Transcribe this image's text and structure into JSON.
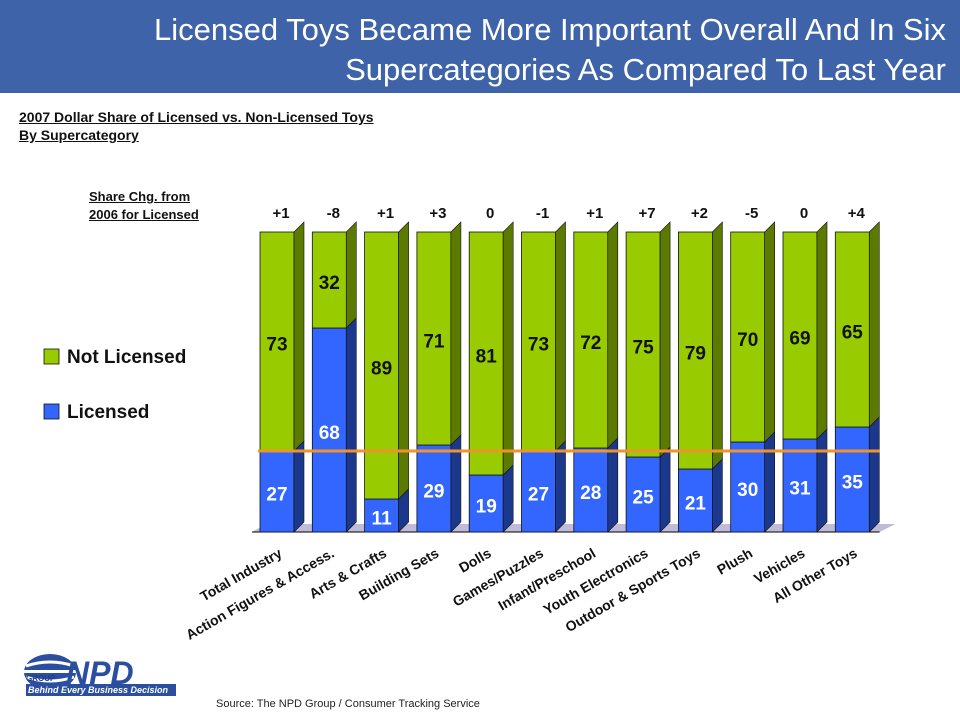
{
  "title": "Licensed Toys Became More Important Overall And In Six\nSupercategories As Compared To Last Year",
  "subtitle_line1": "2007 Dollar Share of Licensed vs. Non-Licensed Toys",
  "subtitle_line2": "By Supercategory",
  "share_change_label_line1": "Share Chg. from",
  "share_change_label_line2": "2006 for Licensed",
  "source": "Source:  The NPD Group / Consumer Tracking Service",
  "logo": {
    "name": "NPD",
    "group": "GROUP",
    "tagline": "Behind Every Business Decision"
  },
  "colors": {
    "title_bar": "#3e63a9",
    "not_licensed": "#99cc00",
    "licensed": "#3366ff",
    "reference_line": "#f0932b"
  },
  "chart_data": {
    "type": "bar",
    "stacked": true,
    "percent_stacked": true,
    "categories": [
      "Total Industry",
      "Action Figures & Access.",
      "Arts & Crafts",
      "Building Sets",
      "Dolls",
      "Games/Puzzles",
      "Infant/Preschool",
      "Youth Electronics",
      "Outdoor & Sports Toys",
      "Plush",
      "Vehicles",
      "All Other Toys"
    ],
    "series": [
      {
        "name": "Licensed",
        "values": [
          27,
          68,
          11,
          29,
          19,
          27,
          28,
          25,
          21,
          30,
          31,
          35
        ]
      },
      {
        "name": "Not Licensed",
        "values": [
          73,
          32,
          89,
          71,
          81,
          73,
          72,
          75,
          79,
          70,
          69,
          65
        ]
      }
    ],
    "share_change_licensed": [
      "+1",
      "-8",
      "+1",
      "+3",
      "0",
      "-1",
      "+1",
      "+7",
      "+2",
      "-5",
      "0",
      "+4"
    ],
    "reference_line_value": 27,
    "ylim": [
      0,
      100
    ],
    "legend": "left",
    "grid": false
  }
}
